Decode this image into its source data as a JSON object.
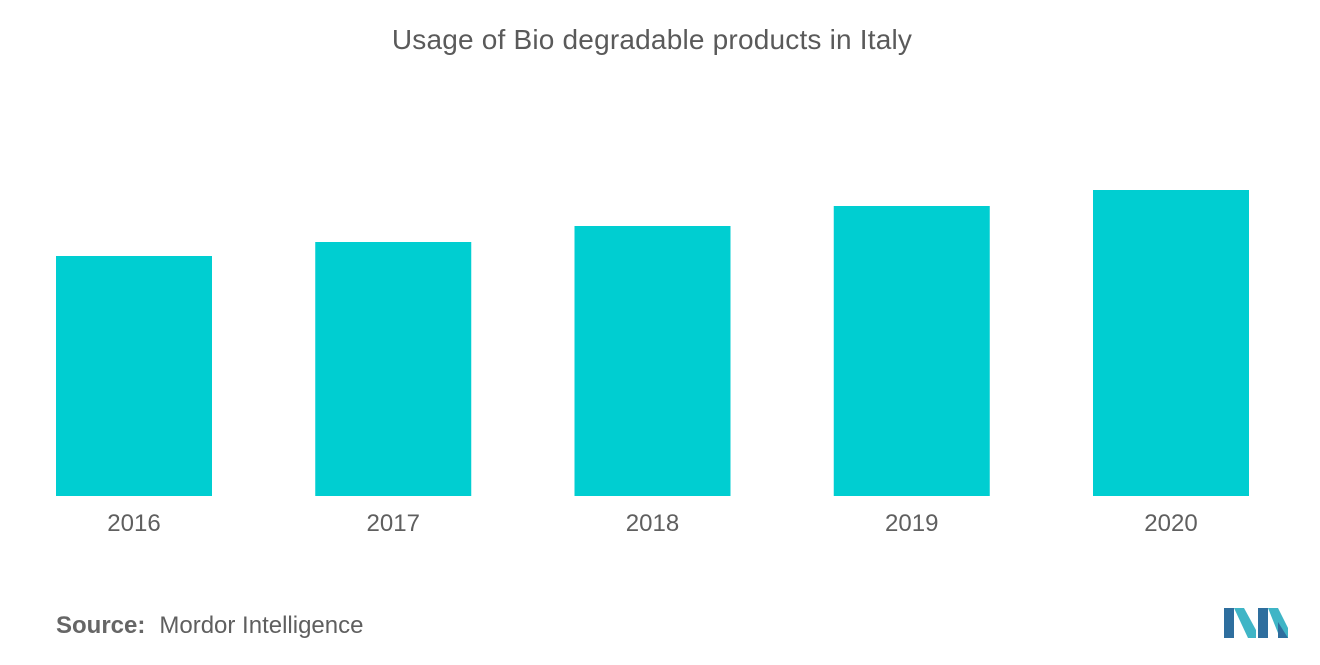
{
  "chart_data": {
    "type": "bar",
    "title": "Usage of Bio degradable products in Italy",
    "xlabel": "",
    "ylabel": "",
    "categories": [
      "2016",
      "2017",
      "2018",
      "2019",
      "2020"
    ],
    "values": [
      60,
      63.5,
      67.5,
      72.5,
      76.5
    ],
    "ylim": [
      0,
      100
    ],
    "grid": false,
    "legend": "none",
    "bar_color": "#00CED1"
  },
  "source": {
    "label": "Source:",
    "text": "Mordor Intelligence"
  },
  "logo": {
    "icon": "mordor-intelligence-logo",
    "colors": [
      "#2E6E9E",
      "#3FB5C6"
    ]
  }
}
